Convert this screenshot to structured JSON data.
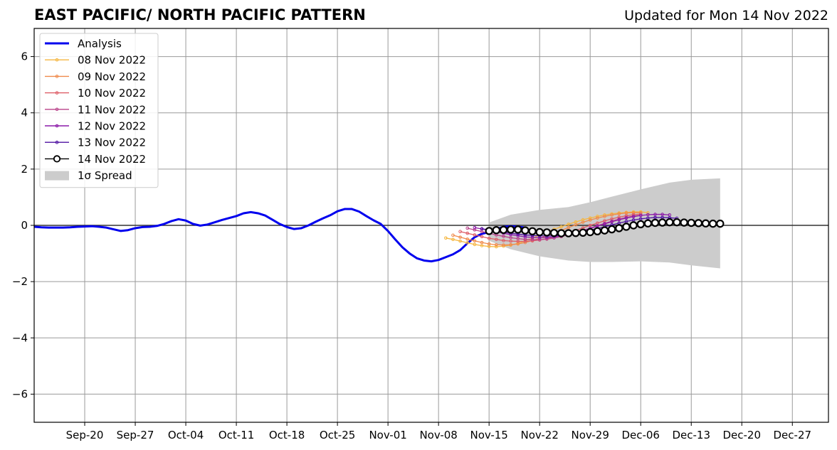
{
  "header": {
    "title": "EAST PACIFIC/ NORTH PACIFIC PATTERN",
    "updated": "Updated for Mon 14 Nov 2022"
  },
  "chart_data": {
    "type": "line",
    "title": "EAST PACIFIC/ NORTH PACIFIC PATTERN",
    "subtitle": "Updated for Mon 14 Nov 2022",
    "xlabel": "",
    "ylabel": "",
    "xlim": [
      "2022-09-13",
      "2023-01-01"
    ],
    "ylim": [
      -7,
      7
    ],
    "yticks": [
      -6,
      -4,
      -2,
      0,
      2,
      4,
      6
    ],
    "ytick_labels": [
      "−6",
      "−4",
      "−2",
      "0",
      "2",
      "4",
      "6"
    ],
    "xticks": [
      "2022-09-20",
      "2022-09-27",
      "2022-10-04",
      "2022-10-11",
      "2022-10-18",
      "2022-10-25",
      "2022-11-01",
      "2022-11-08",
      "2022-11-15",
      "2022-11-22",
      "2022-11-29",
      "2022-12-06",
      "2022-12-13",
      "2022-12-20",
      "2022-12-27"
    ],
    "xtick_labels": [
      "Sep-20",
      "Sep-27",
      "Oct-04",
      "Oct-11",
      "Oct-18",
      "Oct-25",
      "Nov-01",
      "Nov-08",
      "Nov-15",
      "Nov-22",
      "Nov-29",
      "Dec-06",
      "Dec-13",
      "Dec-20",
      "Dec-27"
    ],
    "grid": true,
    "legend_position": "top-left",
    "zero_line": 0,
    "colors": {
      "analysis": "#0000ee",
      "spread": "#cccccc",
      "grid": "#9a9a9a"
    },
    "series": [
      {
        "name": "Analysis",
        "color": "#0000ee",
        "start": "2022-09-13",
        "values": [
          -0.05,
          -0.07,
          -0.08,
          -0.08,
          -0.08,
          -0.07,
          -0.05,
          -0.04,
          -0.03,
          -0.05,
          -0.08,
          -0.14,
          -0.2,
          -0.17,
          -0.1,
          -0.06,
          -0.05,
          -0.02,
          0.05,
          0.15,
          0.22,
          0.17,
          0.05,
          -0.01,
          0.03,
          0.11,
          0.19,
          0.26,
          0.33,
          0.43,
          0.47,
          0.43,
          0.35,
          0.2,
          0.05,
          -0.06,
          -0.13,
          -0.1,
          0.0,
          0.13,
          0.25,
          0.36,
          0.5,
          0.58,
          0.58,
          0.49,
          0.33,
          0.18,
          0.05,
          -0.2,
          -0.5,
          -0.78,
          -1.0,
          -1.17,
          -1.25,
          -1.28,
          -1.23,
          -1.13,
          -1.03,
          -0.88,
          -0.64,
          -0.42,
          -0.3,
          -0.24,
          -0.14,
          -0.05,
          -0.03,
          -0.05,
          -0.08
        ]
      },
      {
        "name": "08 Nov 2022",
        "color": "#f5b640",
        "start": "2022-11-09",
        "values": [
          -0.45,
          -0.5,
          -0.56,
          -0.62,
          -0.68,
          -0.72,
          -0.75,
          -0.76,
          -0.74,
          -0.7,
          -0.64,
          -0.55,
          -0.45,
          -0.35,
          -0.24,
          -0.14,
          -0.05,
          0.04,
          0.12,
          0.2,
          0.26,
          0.32,
          0.37,
          0.41,
          0.44,
          0.46,
          0.48,
          0.48,
          0.45
        ]
      },
      {
        "name": "09 Nov 2022",
        "color": "#f08a4b",
        "start": "2022-11-10",
        "values": [
          -0.35,
          -0.42,
          -0.49,
          -0.55,
          -0.61,
          -0.66,
          -0.69,
          -0.7,
          -0.69,
          -0.66,
          -0.61,
          -0.54,
          -0.46,
          -0.37,
          -0.28,
          -0.18,
          -0.08,
          0.02,
          0.11,
          0.19,
          0.26,
          0.32,
          0.37,
          0.41,
          0.44,
          0.45,
          0.45
        ]
      },
      {
        "name": "10 Nov 2022",
        "color": "#de5d66",
        "start": "2022-11-11",
        "values": [
          -0.22,
          -0.28,
          -0.34,
          -0.4,
          -0.46,
          -0.5,
          -0.54,
          -0.56,
          -0.57,
          -0.57,
          -0.55,
          -0.52,
          -0.47,
          -0.41,
          -0.34,
          -0.26,
          -0.18,
          -0.09,
          0.0,
          0.08,
          0.16,
          0.23,
          0.29,
          0.34,
          0.38,
          0.4
        ]
      },
      {
        "name": "11 Nov 2022",
        "color": "#b9428a",
        "start": "2022-11-12",
        "values": [
          -0.1,
          -0.16,
          -0.22,
          -0.28,
          -0.34,
          -0.39,
          -0.44,
          -0.47,
          -0.5,
          -0.51,
          -0.51,
          -0.49,
          -0.45,
          -0.4,
          -0.33,
          -0.26,
          -0.18,
          -0.1,
          -0.01,
          0.07,
          0.15,
          0.22,
          0.28,
          0.33,
          0.36
        ]
      },
      {
        "name": "12 Nov 2022",
        "color": "#8c1aa8",
        "start": "2022-11-13",
        "values": [
          -0.08,
          -0.13,
          -0.18,
          -0.23,
          -0.28,
          -0.33,
          -0.37,
          -0.41,
          -0.43,
          -0.44,
          -0.43,
          -0.41,
          -0.37,
          -0.32,
          -0.26,
          -0.19,
          -0.11,
          -0.03,
          0.05,
          0.13,
          0.2,
          0.26,
          0.31,
          0.35,
          0.38,
          0.39,
          0.39,
          0.37
        ]
      },
      {
        "name": "13 Nov 2022",
        "color": "#4e10a0",
        "start": "2022-11-14",
        "values": [
          -0.12,
          -0.16,
          -0.2,
          -0.24,
          -0.28,
          -0.31,
          -0.34,
          -0.36,
          -0.37,
          -0.38,
          -0.37,
          -0.35,
          -0.32,
          -0.28,
          -0.23,
          -0.17,
          -0.11,
          -0.05,
          0.02,
          0.08,
          0.14,
          0.19,
          0.23,
          0.26,
          0.28,
          0.28,
          0.27,
          0.25
        ]
      },
      {
        "name": "14 Nov 2022",
        "color": "#000000",
        "start": "2022-11-15",
        "values": [
          -0.2,
          -0.17,
          -0.16,
          -0.15,
          -0.15,
          -0.18,
          -0.21,
          -0.24,
          -0.25,
          -0.27,
          -0.28,
          -0.28,
          -0.27,
          -0.26,
          -0.24,
          -0.21,
          -0.18,
          -0.14,
          -0.1,
          -0.05,
          0.0,
          0.04,
          0.07,
          0.09,
          0.1,
          0.11,
          0.11,
          0.1,
          0.09,
          0.08,
          0.07,
          0.06,
          0.06
        ]
      }
    ],
    "spread": {
      "name": "1σ Spread",
      "color": "#cccccc",
      "x": [
        "2022-11-15",
        "2022-11-18",
        "2022-11-22",
        "2022-11-26",
        "2022-11-29",
        "2022-12-02",
        "2022-12-06",
        "2022-12-10",
        "2022-12-13",
        "2022-12-17"
      ],
      "upper": [
        0.1,
        0.38,
        0.55,
        0.65,
        0.82,
        1.02,
        1.28,
        1.52,
        1.62,
        1.67
      ],
      "lower": [
        -0.55,
        -0.85,
        -1.1,
        -1.25,
        -1.3,
        -1.3,
        -1.28,
        -1.32,
        -1.42,
        -1.53
      ]
    },
    "legend": [
      {
        "label": "Analysis",
        "style": "line",
        "color": "#0000ee"
      },
      {
        "label": "08 Nov 2022",
        "style": "line-dot",
        "color": "#f5b640"
      },
      {
        "label": "09 Nov 2022",
        "style": "line-dot",
        "color": "#f08a4b"
      },
      {
        "label": "10 Nov 2022",
        "style": "line-dot",
        "color": "#de5d66"
      },
      {
        "label": "11 Nov 2022",
        "style": "line-dot",
        "color": "#b9428a"
      },
      {
        "label": "12 Nov 2022",
        "style": "line-dot",
        "color": "#8c1aa8"
      },
      {
        "label": "13 Nov 2022",
        "style": "line-dot",
        "color": "#4e10a0"
      },
      {
        "label": "14 Nov 2022",
        "style": "line-circle",
        "color": "#000000"
      },
      {
        "label": "1σ Spread",
        "style": "patch",
        "color": "#cccccc"
      }
    ]
  }
}
